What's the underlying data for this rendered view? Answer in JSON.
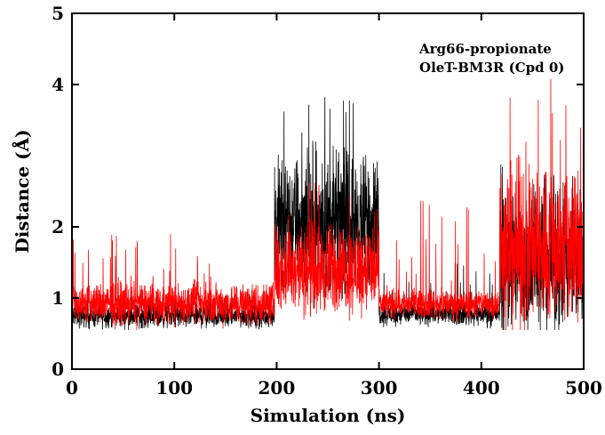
{
  "chart_data": {
    "type": "line",
    "xlabel": "Simulation (ns)",
    "ylabel": "Distance (Å)",
    "xlim": [
      0,
      500
    ],
    "ylim": [
      0,
      5
    ],
    "x_ticks": [
      "0",
      "100",
      "200",
      "300",
      "400",
      "500"
    ],
    "y_ticks": [
      "0",
      "1",
      "2",
      "4",
      "5"
    ],
    "annotation": [
      "Arg66-propionate",
      "OleT-BM3R (Cpd 0)"
    ],
    "legend": "none",
    "grid": false,
    "series": [
      {
        "color": "#000000",
        "segments": [
          {
            "x": [
              0,
              198
            ],
            "mean": 0.75,
            "spread": 0.08,
            "spike_max": 1.1
          },
          {
            "x": [
              198,
              300
            ],
            "mean": 2.05,
            "spread": 0.45,
            "spike_max": 3.9
          },
          {
            "x": [
              300,
              418
            ],
            "mean": 0.78,
            "spread": 0.08,
            "spike_max": 1.5
          },
          {
            "x": [
              418,
              500
            ],
            "mean": 1.55,
            "spread": 0.5,
            "spike_max": 3.0
          }
        ]
      },
      {
        "color": "#ff0000",
        "segments": [
          {
            "x": [
              0,
              198
            ],
            "mean": 0.92,
            "spread": 0.14,
            "spike_max": 1.9
          },
          {
            "x": [
              198,
              300
            ],
            "mean": 1.4,
            "spread": 0.3,
            "spike_max": 2.7
          },
          {
            "x": [
              300,
              418
            ],
            "mean": 0.92,
            "spread": 0.1,
            "spike_max": 2.4
          },
          {
            "x": [
              418,
              500
            ],
            "mean": 1.7,
            "spread": 0.55,
            "spike_max": 4.3
          }
        ]
      }
    ]
  }
}
